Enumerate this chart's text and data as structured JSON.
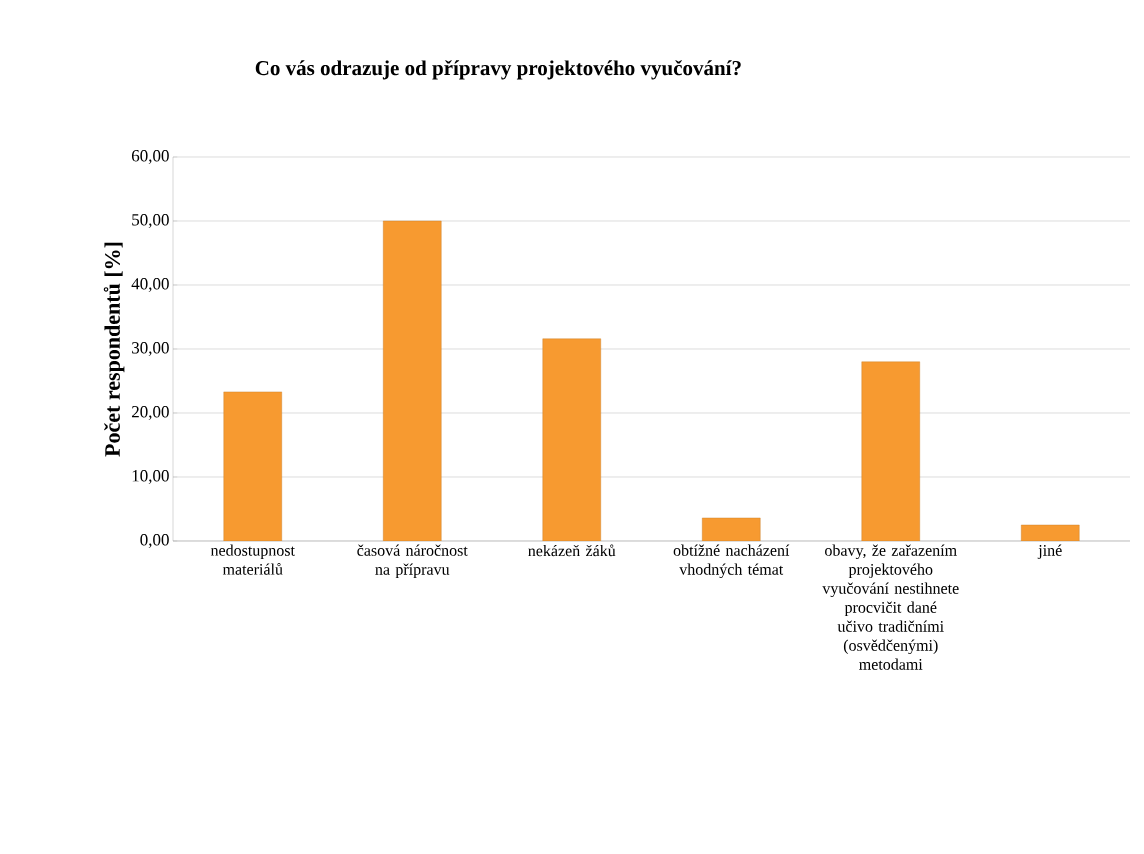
{
  "chart_data": {
    "type": "bar",
    "title": "Co vás odrazuje od přípravy projektového vyučování?",
    "ylabel": "Počet respondentů [%]",
    "categories": [
      "nedostupnost materiálů",
      "časová náročnost na přípravu",
      "nekázeň žáků",
      "obtížné nacházení vhodných témat",
      "obavy, že zařazením projektového vyučování nestihnete procvičit dané učivo tradičními (osvědčenými) metodami",
      "jiné"
    ],
    "values": [
      23.3,
      50.0,
      31.6,
      3.6,
      28.0,
      2.5
    ],
    "color": "#f79a30",
    "ylim": [
      0,
      60
    ],
    "yticks": [
      {
        "value": 0,
        "label": "0,00"
      },
      {
        "value": 10,
        "label": "10,00"
      },
      {
        "value": 20,
        "label": "20,00"
      },
      {
        "value": 30,
        "label": "30,00"
      },
      {
        "value": 40,
        "label": "40,00"
      },
      {
        "value": 50,
        "label": "50,00"
      },
      {
        "value": 60,
        "label": "60,00"
      }
    ],
    "grid": "y"
  }
}
